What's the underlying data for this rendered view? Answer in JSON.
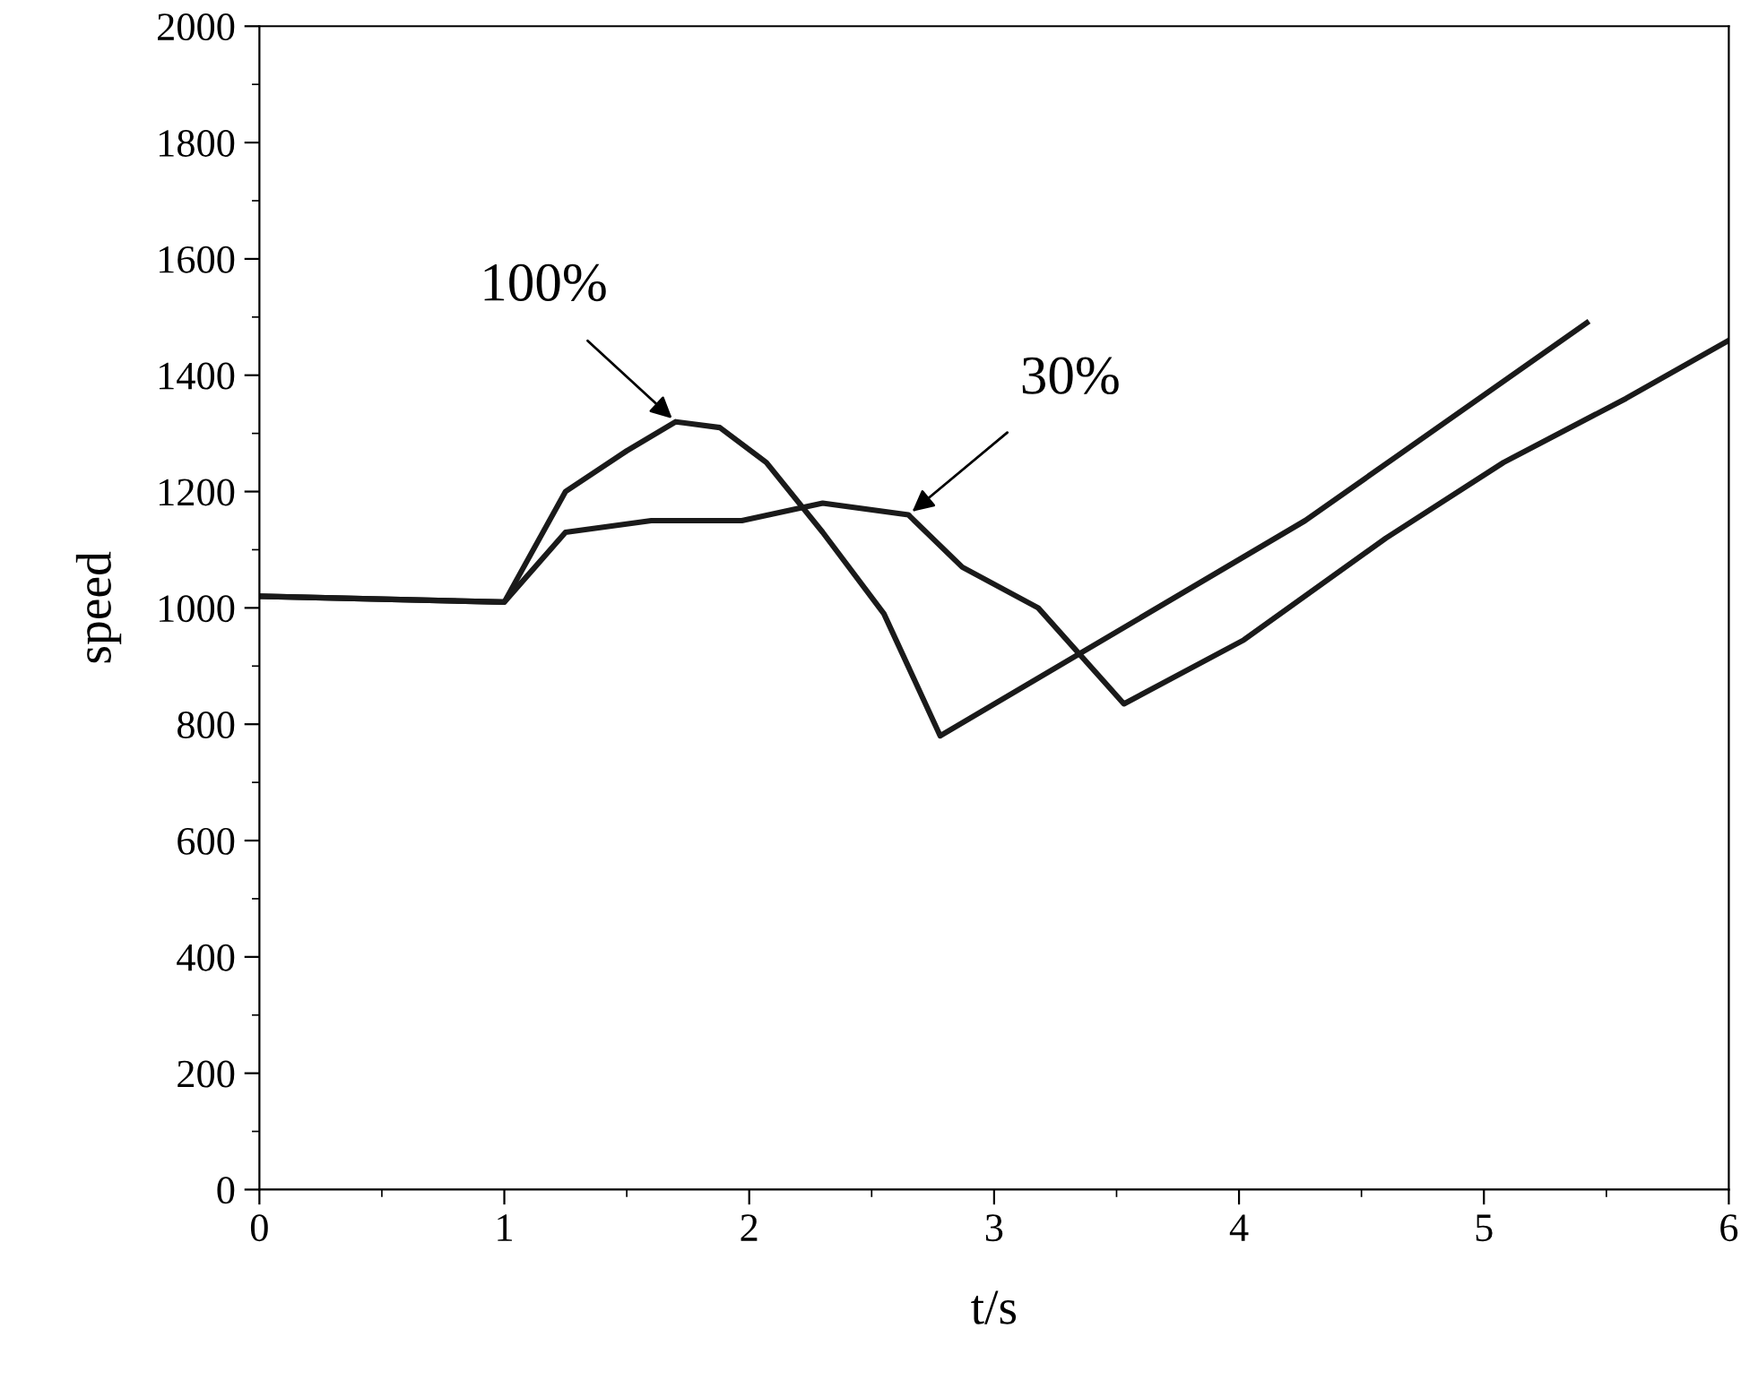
{
  "chart_data": {
    "type": "line",
    "xlabel": "t/s",
    "ylabel": "speed",
    "xlim": [
      0,
      6
    ],
    "ylim": [
      0,
      2000
    ],
    "xticks": [
      0,
      1,
      2,
      3,
      4,
      5,
      6
    ],
    "yticks": [
      0,
      200,
      400,
      600,
      800,
      1000,
      1200,
      1400,
      1600,
      1800,
      2000
    ],
    "grid": false,
    "legend": false,
    "marker": "none",
    "line_style": "solid",
    "series": [
      {
        "color": "#1a1a1a",
        "x": [
          0,
          1,
          1.25,
          1.5,
          1.7,
          1.88,
          2.07,
          2.3,
          2.55,
          2.78,
          4.27,
          5.42
        ],
        "values": [
          1020,
          1010,
          1200,
          1270,
          1320,
          1310,
          1250,
          1130,
          990,
          780,
          1150,
          1490
        ]
      },
      {
        "color": "#1a1a1a",
        "x": [
          0,
          1,
          1.25,
          1.6,
          1.97,
          2.3,
          2.65,
          2.87,
          3.18,
          3.53,
          4.02,
          4.6,
          5.08,
          5.58,
          6
        ],
        "values": [
          1020,
          1010,
          1130,
          1150,
          1150,
          1180,
          1160,
          1070,
          1000,
          835,
          945,
          1120,
          1250,
          1360,
          1460
        ]
      }
    ],
    "annotations": [
      {
        "text": "100%",
        "x": 1.7,
        "y": 1320
      },
      {
        "text": "30%",
        "x": 2.65,
        "y": 1160
      }
    ]
  }
}
